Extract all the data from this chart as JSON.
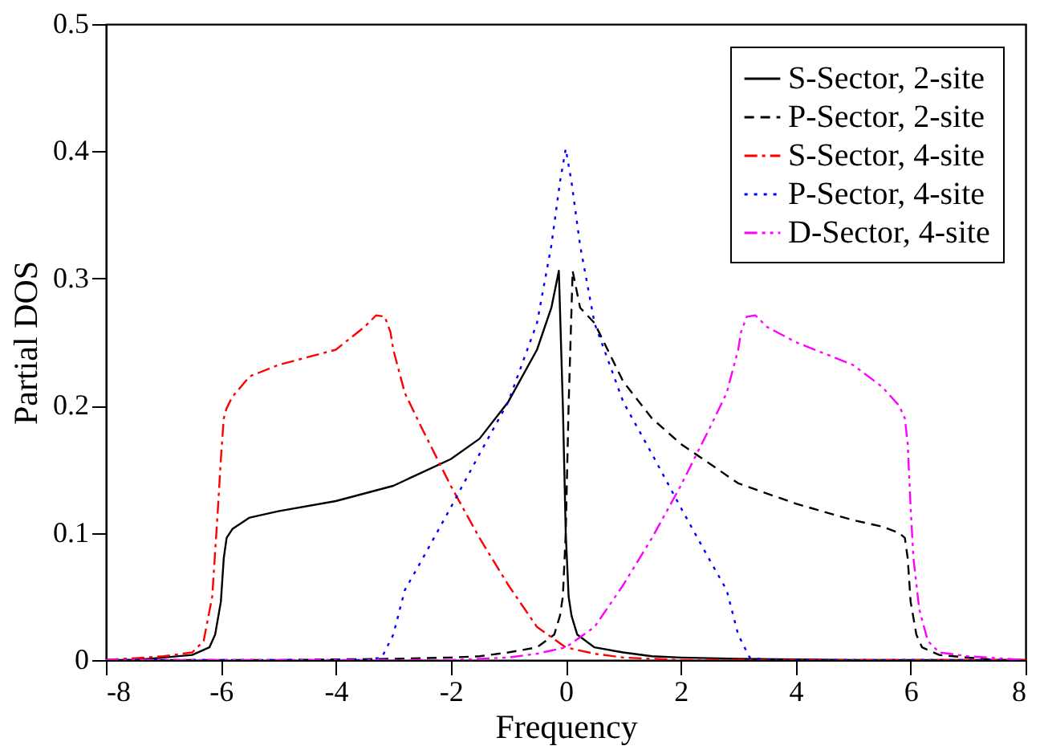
{
  "chart_data": {
    "type": "line",
    "xlabel": "Frequency",
    "ylabel": "Partial DOS",
    "xlim": [
      -8,
      8
    ],
    "ylim": [
      0,
      0.5
    ],
    "xticks": [
      -8,
      -6,
      -4,
      -2,
      0,
      2,
      4,
      6,
      8
    ],
    "yticks": [
      0,
      0.1,
      0.2,
      0.3,
      0.4,
      0.5
    ],
    "grid": false,
    "legend": "top right",
    "marker": "none",
    "series": [
      {
        "name": "S-Sector, 2-site",
        "color": "#000000",
        "line_style": "solid",
        "x": [
          -8,
          -7.5,
          -7,
          -6.5,
          -6.2,
          -6.1,
          -6.0,
          -5.95,
          -5.9,
          -5.8,
          -5.5,
          -5,
          -4,
          -3,
          -2,
          -1.5,
          -1,
          -0.5,
          -0.25,
          -0.12,
          -0.05,
          0,
          0.05,
          0.1,
          0.2,
          0.5,
          1,
          1.5,
          2,
          3,
          5,
          8
        ],
        "values": [
          0,
          0,
          0.002,
          0.004,
          0.01,
          0.02,
          0.046,
          0.08,
          0.096,
          0.103,
          0.112,
          0.117,
          0.125,
          0.137,
          0.158,
          0.174,
          0.203,
          0.244,
          0.277,
          0.306,
          0.2,
          0.1,
          0.05,
          0.035,
          0.02,
          0.01,
          0.006,
          0.003,
          0.002,
          0.001,
          0,
          0
        ]
      },
      {
        "name": "P-Sector, 2-site",
        "color": "#000000",
        "line_style": "dashed",
        "x": [
          -8,
          -5,
          -3,
          -2,
          -1.5,
          -1,
          -0.5,
          -0.2,
          -0.1,
          -0.05,
          0,
          0.05,
          0.12,
          0.25,
          0.5,
          1,
          1.5,
          2,
          3,
          4,
          5,
          5.5,
          5.8,
          5.9,
          5.95,
          6.0,
          6.1,
          6.2,
          6.5,
          7,
          7.5,
          8
        ],
        "values": [
          0,
          0,
          0.001,
          0.002,
          0.003,
          0.006,
          0.01,
          0.02,
          0.035,
          0.05,
          0.1,
          0.2,
          0.306,
          0.277,
          0.265,
          0.219,
          0.19,
          0.17,
          0.139,
          0.123,
          0.11,
          0.105,
          0.1,
          0.096,
          0.08,
          0.046,
          0.02,
          0.01,
          0.004,
          0.002,
          0,
          0
        ]
      },
      {
        "name": "S-Sector, 4-site",
        "color": "#ff0000",
        "line_style": "dashdot",
        "x": [
          -8,
          -7,
          -6.5,
          -6.3,
          -6.15,
          -6.05,
          -6.0,
          -5.95,
          -5.9,
          -5.8,
          -5.5,
          -5,
          -4,
          -3.5,
          -3.3,
          -3.15,
          -3.05,
          -3,
          -2.8,
          -2.5,
          -2,
          -1.5,
          -1,
          -0.5,
          0,
          0.5,
          1,
          1.5,
          2,
          8
        ],
        "values": [
          0,
          0.003,
          0.006,
          0.015,
          0.05,
          0.12,
          0.158,
          0.19,
          0.198,
          0.207,
          0.223,
          0.232,
          0.244,
          0.262,
          0.271,
          0.27,
          0.258,
          0.244,
          0.21,
          0.182,
          0.137,
          0.096,
          0.059,
          0.026,
          0.01,
          0.005,
          0.002,
          0.001,
          0,
          0
        ]
      },
      {
        "name": "P-Sector, 4-site",
        "color": "#0000ff",
        "line_style": "dotted",
        "x": [
          -8,
          -3.5,
          -3.2,
          -3.0,
          -2.8,
          -2.5,
          -2,
          -1.5,
          -1,
          -0.5,
          -0.25,
          -0.1,
          0,
          0.1,
          0.25,
          0.5,
          1,
          1.5,
          2,
          2.5,
          2.8,
          3.0,
          3.2,
          3.5,
          8
        ],
        "values": [
          0,
          0,
          0.002,
          0.02,
          0.055,
          0.079,
          0.12,
          0.162,
          0.203,
          0.265,
          0.326,
          0.376,
          0.402,
          0.376,
          0.326,
          0.265,
          0.203,
          0.162,
          0.12,
          0.079,
          0.055,
          0.02,
          0.002,
          0,
          0
        ]
      },
      {
        "name": "D-Sector, 4-site",
        "color": "#ff00ff",
        "line_style": "dashdotdot",
        "x": [
          -8,
          -2,
          -1.5,
          -1,
          -0.5,
          0,
          0.5,
          1,
          1.5,
          2,
          2.5,
          2.8,
          3,
          3.05,
          3.15,
          3.3,
          3.5,
          4,
          5,
          5.5,
          5.8,
          5.9,
          5.95,
          6.0,
          6.05,
          6.15,
          6.3,
          6.5,
          7,
          8
        ],
        "values": [
          0,
          0,
          0.001,
          0.002,
          0.005,
          0.01,
          0.026,
          0.059,
          0.096,
          0.137,
          0.182,
          0.21,
          0.244,
          0.258,
          0.27,
          0.271,
          0.262,
          0.25,
          0.232,
          0.215,
          0.2,
          0.19,
          0.17,
          0.12,
          0.08,
          0.04,
          0.015,
          0.006,
          0.003,
          0
        ]
      }
    ]
  }
}
